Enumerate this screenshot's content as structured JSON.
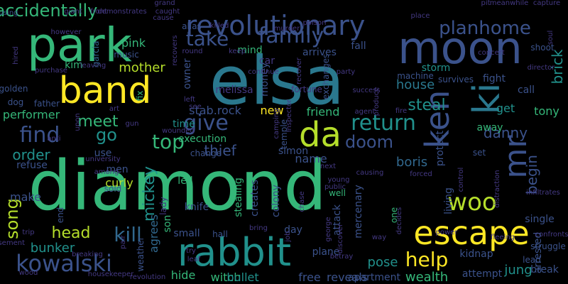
{
  "word_cloud": {
    "background": "#000000",
    "palette": "viridis",
    "words": [
      {
        "text": "diamond",
        "color": "#35b779"
      },
      {
        "text": "elsa",
        "color": "#2a788e"
      },
      {
        "text": "park",
        "color": "#35b779"
      },
      {
        "text": "moon",
        "color": "#3b528b"
      },
      {
        "text": "band",
        "color": "#fde725"
      },
      {
        "text": "rabbit",
        "color": "#21918c"
      },
      {
        "text": "escape",
        "color": "#fde725"
      },
      {
        "text": "ki",
        "color": "#2a788e"
      },
      {
        "text": "revolutionary",
        "color": "#3b528b"
      },
      {
        "text": "ken",
        "color": "#3b528b"
      },
      {
        "text": "da",
        "color": "#b5de2b"
      },
      {
        "text": "mr",
        "color": "#3b528b"
      },
      {
        "text": "family",
        "color": "#3b528b"
      },
      {
        "text": "planhome",
        "color": "#3b528b"
      },
      {
        "text": "woo",
        "color": "#b5de2b"
      },
      {
        "text": "kowalski",
        "color": "#3b528b"
      },
      {
        "text": "kill",
        "color": "#31688e"
      },
      {
        "text": "find",
        "color": "#3b528b"
      },
      {
        "text": "give",
        "color": "#3b528b"
      },
      {
        "text": "return",
        "color": "#21918c"
      },
      {
        "text": "take",
        "color": "#3b528b"
      },
      {
        "text": "top",
        "color": "#35b779"
      },
      {
        "text": "doom",
        "color": "#3b528b"
      },
      {
        "text": "meet",
        "color": "#35b779"
      },
      {
        "text": "help",
        "color": "#fde725"
      },
      {
        "text": "song",
        "color": "#b5de2b"
      },
      {
        "text": "go",
        "color": "#21918c"
      },
      {
        "text": "accidentally",
        "color": "#35b779"
      },
      {
        "text": "head",
        "color": "#b5de2b"
      },
      {
        "text": "bunker",
        "color": "#21918c"
      },
      {
        "text": "mother",
        "color": "#b5de2b"
      },
      {
        "text": "car",
        "color": "#443983"
      },
      {
        "text": "pose",
        "color": "#21918c"
      },
      {
        "text": "steal",
        "color": "#21918c"
      },
      {
        "text": "boris",
        "color": "#31688e"
      },
      {
        "text": "danny",
        "color": "#3b528b"
      },
      {
        "text": "tony",
        "color": "#35b779"
      },
      {
        "text": "brick",
        "color": "#21918c"
      },
      {
        "text": "begin",
        "color": "#3b528b"
      },
      {
        "text": "mickey",
        "color": "#21918c"
      },
      {
        "text": "order",
        "color": "#21918c"
      },
      {
        "text": "house",
        "color": "#2a788e"
      },
      {
        "text": "thief",
        "color": "#3b528b"
      },
      {
        "text": "wealth",
        "color": "#35b779"
      },
      {
        "text": "new",
        "color": "#fde725"
      },
      {
        "text": "lady",
        "color": "#443983"
      },
      {
        "text": "jung",
        "color": "#21918c"
      },
      {
        "text": "witch",
        "color": "#35b779"
      },
      {
        "text": "hide",
        "color": "#35b779"
      },
      {
        "text": "bullet",
        "color": "#21918c"
      },
      {
        "text": "stab.rock",
        "color": "#3b528b"
      },
      {
        "text": "mind",
        "color": "#35b779"
      },
      {
        "text": "money",
        "color": "#3b528b"
      },
      {
        "text": "friend",
        "color": "#35b779"
      },
      {
        "text": "free",
        "color": "#3b528b"
      },
      {
        "text": "reveals",
        "color": "#3b528b"
      },
      {
        "text": "attempt",
        "color": "#3b528b"
      },
      {
        "text": "pink",
        "color": "#35b779"
      },
      {
        "text": "kim",
        "color": "#35b779"
      },
      {
        "text": "garcia",
        "color": "#31688e"
      },
      {
        "text": "music",
        "color": "#3b528b"
      },
      {
        "text": "melissa",
        "color": "#443983"
      },
      {
        "text": "owner",
        "color": "#3b528b"
      },
      {
        "text": "alias",
        "color": "#3b528b"
      },
      {
        "text": "survives",
        "color": "#3b528b"
      },
      {
        "text": "storm",
        "color": "#21918c"
      },
      {
        "text": "arrives",
        "color": "#3b528b"
      },
      {
        "text": "fall",
        "color": "#3b528b"
      },
      {
        "text": "machine",
        "color": "#3b528b"
      },
      {
        "text": "fight",
        "color": "#3b528b"
      },
      {
        "text": "call",
        "color": "#3b528b"
      },
      {
        "text": "get",
        "color": "#21918c"
      },
      {
        "text": "away",
        "color": "#35b779"
      },
      {
        "text": "shoot",
        "color": "#3b528b"
      },
      {
        "text": "exchanges",
        "color": "#3b528b"
      },
      {
        "text": "fortune",
        "color": "#443983"
      },
      {
        "text": "performer",
        "color": "#35b779"
      },
      {
        "text": "dog",
        "color": "#3b528b"
      },
      {
        "text": "father",
        "color": "#3b528b"
      },
      {
        "text": "men",
        "color": "#3b528b"
      },
      {
        "text": "golden",
        "color": "#3b528b"
      },
      {
        "text": "fix",
        "color": "#35b779"
      },
      {
        "text": "time",
        "color": "#21918c"
      },
      {
        "text": "execution",
        "color": "#35b779"
      },
      {
        "text": "change",
        "color": "#3b528b"
      },
      {
        "text": "simon",
        "color": "#3b528b"
      },
      {
        "text": "temple",
        "color": "#3b528b"
      },
      {
        "text": "protect",
        "color": "#3b528b"
      },
      {
        "text": "use",
        "color": "#3b528b"
      },
      {
        "text": "curly",
        "color": "#b5de2b"
      },
      {
        "text": "sold",
        "color": "#3b528b"
      },
      {
        "text": "make",
        "color": "#3b528b"
      },
      {
        "text": "refuse",
        "color": "#3b528b"
      },
      {
        "text": "agrees",
        "color": "#31688e"
      },
      {
        "text": "small",
        "color": "#3b528b"
      },
      {
        "text": "hall",
        "color": "#3b528b"
      },
      {
        "text": "stealing",
        "color": "#35b779"
      },
      {
        "text": "creates",
        "color": "#3b528b"
      },
      {
        "text": "colony",
        "color": "#3b528b"
      },
      {
        "text": "day",
        "color": "#3b528b"
      },
      {
        "text": "plane",
        "color": "#3b528b"
      },
      {
        "text": "attack",
        "color": "#3b528b"
      },
      {
        "text": "mercenary",
        "color": "#3b528b"
      },
      {
        "text": "living",
        "color": "#3b528b"
      },
      {
        "text": "kidnap",
        "color": "#3b528b"
      },
      {
        "text": "single",
        "color": "#3b528b"
      },
      {
        "text": "arrested",
        "color": "#3b528b"
      },
      {
        "text": "struggle",
        "color": "#3b528b"
      },
      {
        "text": "lead",
        "color": "#3b528b"
      },
      {
        "text": "break",
        "color": "#3b528b"
      },
      {
        "text": "knife",
        "color": "#3b528b"
      },
      {
        "text": "led",
        "color": "#35b779"
      },
      {
        "text": "well",
        "color": "#35b779"
      },
      {
        "text": "name",
        "color": "#3b528b"
      },
      {
        "text": "one",
        "color": "#35b779"
      },
      {
        "text": "apartment",
        "color": "#3b528b"
      },
      {
        "text": "set",
        "color": "#3b528b"
      },
      {
        "text": "son",
        "color": "#35b779"
      },
      {
        "text": "weather",
        "color": "#3b528b"
      },
      {
        "text": "end",
        "color": "#3b528b"
      },
      {
        "text": "using",
        "color": "#3b528b"
      },
      {
        "text": "giant",
        "color": "#443983"
      },
      {
        "text": "front",
        "color": "#443983"
      },
      {
        "text": "demonstrates",
        "color": "#443983"
      },
      {
        "text": "grand",
        "color": "#443983"
      },
      {
        "text": "caught",
        "color": "#443983"
      },
      {
        "text": "cause",
        "color": "#443983"
      },
      {
        "text": "pit",
        "color": "#443983"
      },
      {
        "text": "meanwhile",
        "color": "#443983"
      },
      {
        "text": "capture",
        "color": "#443983"
      },
      {
        "text": "place",
        "color": "#443983"
      },
      {
        "text": "poison",
        "color": "#443983"
      },
      {
        "text": "killed",
        "color": "#443983"
      },
      {
        "text": "murder",
        "color": "#443983"
      },
      {
        "text": "soul",
        "color": "#443983"
      },
      {
        "text": "however",
        "color": "#443983"
      },
      {
        "text": "hired",
        "color": "#443983"
      },
      {
        "text": "purchase",
        "color": "#443983"
      },
      {
        "text": "leaving",
        "color": "#443983"
      },
      {
        "text": "round",
        "color": "#443983"
      },
      {
        "text": "keep",
        "color": "#443983"
      },
      {
        "text": "continue",
        "color": "#443983"
      },
      {
        "text": "recover",
        "color": "#443983"
      },
      {
        "text": "party",
        "color": "#443983"
      },
      {
        "text": "success",
        "color": "#443983"
      },
      {
        "text": "produce",
        "color": "#443983"
      },
      {
        "text": "agent",
        "color": "#443983"
      },
      {
        "text": "fire",
        "color": "#443983"
      },
      {
        "text": "director",
        "color": "#443983"
      },
      {
        "text": "concert",
        "color": "#443983"
      },
      {
        "text": "recovers",
        "color": "#443983"
      },
      {
        "text": "left",
        "color": "#443983"
      },
      {
        "text": "art",
        "color": "#443983"
      },
      {
        "text": "see",
        "color": "#443983"
      },
      {
        "text": "inspector",
        "color": "#443983"
      },
      {
        "text": "camping",
        "color": "#443983"
      },
      {
        "text": "gun",
        "color": "#443983"
      },
      {
        "text": "wounded",
        "color": "#443983"
      },
      {
        "text": "upon",
        "color": "#443983"
      },
      {
        "text": "university",
        "color": "#443983"
      },
      {
        "text": "among",
        "color": "#443983"
      },
      {
        "text": "next",
        "color": "#443983"
      },
      {
        "text": "causing",
        "color": "#443983"
      },
      {
        "text": "forced",
        "color": "#443983"
      },
      {
        "text": "control",
        "color": "#443983"
      },
      {
        "text": "distraction",
        "color": "#443983"
      },
      {
        "text": "infiltrates",
        "color": "#443983"
      },
      {
        "text": "confronts",
        "color": "#443983"
      },
      {
        "text": "fleeing",
        "color": "#443983"
      },
      {
        "text": "anti",
        "color": "#443983"
      },
      {
        "text": "trip",
        "color": "#443983"
      },
      {
        "text": "basement",
        "color": "#443983"
      },
      {
        "text": "wood",
        "color": "#443983"
      },
      {
        "text": "housekeeper",
        "color": "#443983"
      },
      {
        "text": "revolution",
        "color": "#443983"
      },
      {
        "text": "breaking",
        "color": "#443983"
      },
      {
        "text": "pair",
        "color": "#443983"
      },
      {
        "text": "try",
        "color": "#443983"
      },
      {
        "text": "leaf",
        "color": "#443983"
      },
      {
        "text": "bring",
        "color": "#443983"
      },
      {
        "text": "job",
        "color": "#443983"
      },
      {
        "text": "chase",
        "color": "#443983"
      },
      {
        "text": "young",
        "color": "#443983"
      },
      {
        "text": "public",
        "color": "#443983"
      },
      {
        "text": "george",
        "color": "#443983"
      },
      {
        "text": "betray",
        "color": "#443983"
      },
      {
        "text": "discover",
        "color": "#443983"
      },
      {
        "text": "way",
        "color": "#443983"
      },
      {
        "text": "power",
        "color": "#443983"
      },
      {
        "text": "decides",
        "color": "#443983"
      }
    ]
  }
}
